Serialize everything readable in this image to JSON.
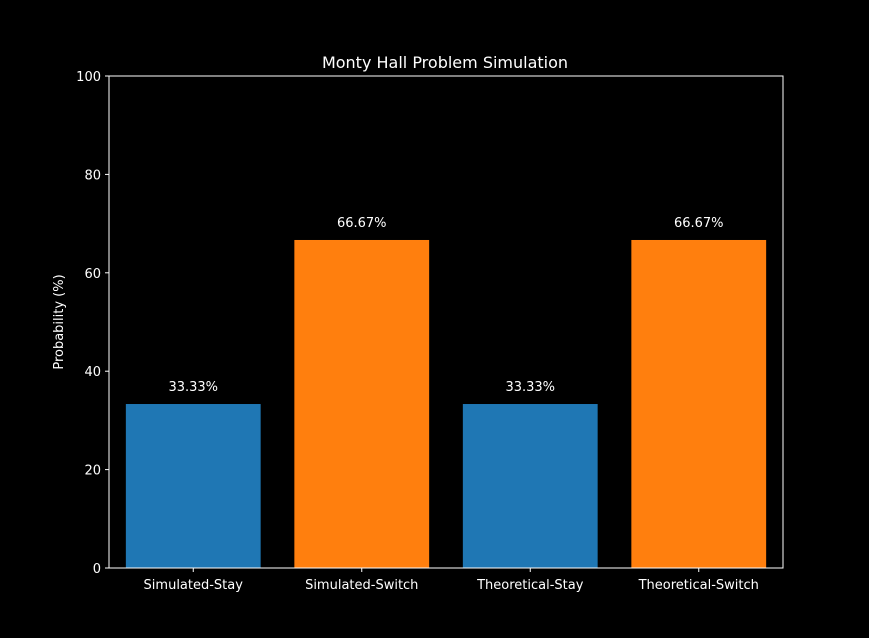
{
  "chart_data": {
    "type": "bar",
    "title": "Monty Hall Problem Simulation",
    "xlabel": "",
    "ylabel": "Probability (%)",
    "ylim": [
      0,
      100
    ],
    "yticks": [
      0,
      20,
      40,
      60,
      80,
      100
    ],
    "categories": [
      "Simulated-Stay",
      "Simulated-Switch",
      "Theoretical-Stay",
      "Theoretical-Switch"
    ],
    "values": [
      33.33,
      66.67,
      33.33,
      66.67
    ],
    "data_labels": [
      "33.33%",
      "66.67%",
      "33.33%",
      "66.67%"
    ],
    "bar_colors": [
      "#1f77b4",
      "#ff7f0e",
      "#1f77b4",
      "#ff7f0e"
    ],
    "grid": false,
    "background_color": "#000000",
    "axis_color": "#ffffff"
  }
}
